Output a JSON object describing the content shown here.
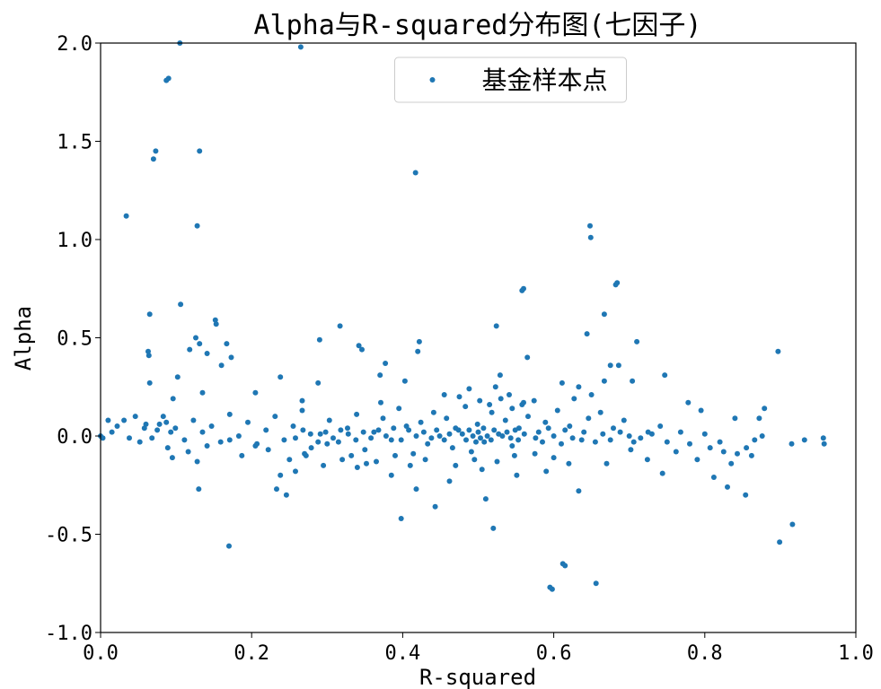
{
  "chart_data": {
    "type": "scatter",
    "title": "Alpha与R-squared分布图(七因子)",
    "xlabel": "R-squared",
    "ylabel": "Alpha",
    "xlim": [
      0.0,
      1.0
    ],
    "ylim": [
      -1.0,
      2.0
    ],
    "xticks": [
      0.0,
      0.2,
      0.4,
      0.6,
      0.8,
      1.0
    ],
    "xtick_labels": [
      "0.0",
      "0.2",
      "0.4",
      "0.6",
      "0.8",
      "1.0"
    ],
    "yticks": [
      -1.0,
      -0.5,
      0.0,
      0.5,
      1.0,
      1.5,
      2.0
    ],
    "ytick_labels": [
      "-1.0",
      "-0.5",
      "0.0",
      "0.5",
      "1.0",
      "1.5",
      "2.0"
    ],
    "grid": false,
    "legend": {
      "position": "top-center"
    },
    "series": [
      {
        "name": "基金样本点",
        "color": "#1f77b4",
        "points": [
          [
            0.105,
            2.0
          ],
          [
            0.265,
            1.98
          ],
          [
            0.09,
            1.82
          ],
          [
            0.087,
            1.81
          ],
          [
            0.073,
            1.45
          ],
          [
            0.131,
            1.45
          ],
          [
            0.07,
            1.41
          ],
          [
            0.417,
            1.34
          ],
          [
            0.034,
            1.12
          ],
          [
            0.128,
            1.07
          ],
          [
            0.648,
            1.07
          ],
          [
            0.649,
            1.01
          ],
          [
            0.684,
            0.78
          ],
          [
            0.682,
            0.77
          ],
          [
            0.56,
            0.75
          ],
          [
            0.558,
            0.74
          ],
          [
            0.106,
            0.67
          ],
          [
            0.065,
            0.62
          ],
          [
            0.667,
            0.62
          ],
          [
            0.152,
            0.59
          ],
          [
            0.153,
            0.57
          ],
          [
            0.317,
            0.56
          ],
          [
            0.524,
            0.56
          ],
          [
            0.644,
            0.52
          ],
          [
            0.126,
            0.5
          ],
          [
            0.29,
            0.49
          ],
          [
            0.422,
            0.48
          ],
          [
            0.71,
            0.48
          ],
          [
            0.167,
            0.47
          ],
          [
            0.131,
            0.47
          ],
          [
            0.342,
            0.46
          ],
          [
            0.346,
            0.44
          ],
          [
            0.063,
            0.43
          ],
          [
            0.064,
            0.41
          ],
          [
            0.118,
            0.44
          ],
          [
            0.141,
            0.42
          ],
          [
            0.173,
            0.4
          ],
          [
            0.42,
            0.43
          ],
          [
            0.565,
            0.4
          ],
          [
            0.897,
            0.43
          ],
          [
            0.377,
            0.37
          ],
          [
            0.675,
            0.36
          ],
          [
            0.686,
            0.36
          ],
          [
            0.16,
            0.36
          ],
          [
            0.102,
            0.3
          ],
          [
            0.238,
            0.3
          ],
          [
            0.37,
            0.31
          ],
          [
            0.529,
            0.31
          ],
          [
            0.747,
            0.31
          ],
          [
            0.065,
            0.27
          ],
          [
            0.288,
            0.27
          ],
          [
            0.403,
            0.28
          ],
          [
            0.611,
            0.27
          ],
          [
            0.633,
            0.25
          ],
          [
            0.667,
            0.28
          ],
          [
            0.704,
            0.28
          ],
          [
            0.096,
            0.19
          ],
          [
            0.135,
            0.22
          ],
          [
            0.205,
            0.22
          ],
          [
            0.267,
            0.18
          ],
          [
            0.371,
            0.17
          ],
          [
            0.523,
            0.25
          ],
          [
            0.541,
            0.21
          ],
          [
            0.558,
            0.16
          ],
          [
            0.574,
            0.18
          ],
          [
            0.627,
            0.19
          ],
          [
            0.65,
            0.21
          ],
          [
            0.778,
            0.17
          ],
          [
            0.795,
            0.13
          ],
          [
            0.84,
            0.09
          ],
          [
            0.879,
            0.14
          ],
          [
            0.872,
            0.09
          ],
          [
            0.01,
            0.08
          ],
          [
            0.022,
            0.05
          ],
          [
            0.031,
            0.08
          ],
          [
            0.046,
            0.1
          ],
          [
            0.058,
            0.04
          ],
          [
            0.078,
            0.06
          ],
          [
            0.083,
            0.1
          ],
          [
            0.093,
            0.02
          ],
          [
            0.0,
            0.0
          ],
          [
            0.003,
            -0.01
          ],
          [
            0.015,
            0.02
          ],
          [
            0.038,
            -0.01
          ],
          [
            0.052,
            -0.03
          ],
          [
            0.089,
            -0.06
          ],
          [
            0.095,
            -0.11
          ],
          [
            0.116,
            -0.08
          ],
          [
            0.128,
            -0.13
          ],
          [
            0.141,
            -0.05
          ],
          [
            0.171,
            -0.02
          ],
          [
            0.187,
            -0.1
          ],
          [
            0.205,
            -0.05
          ],
          [
            0.222,
            -0.07
          ],
          [
            0.238,
            -0.2
          ],
          [
            0.246,
            -0.3
          ],
          [
            0.233,
            -0.27
          ],
          [
            0.258,
            -0.18
          ],
          [
            0.272,
            -0.1
          ],
          [
            0.3,
            -0.04
          ],
          [
            0.332,
            -0.1
          ],
          [
            0.352,
            -0.14
          ],
          [
            0.385,
            -0.2
          ],
          [
            0.398,
            -0.42
          ],
          [
            0.418,
            -0.27
          ],
          [
            0.443,
            -0.36
          ],
          [
            0.462,
            -0.23
          ],
          [
            0.505,
            -0.17
          ],
          [
            0.51,
            -0.32
          ],
          [
            0.52,
            -0.47
          ],
          [
            0.551,
            -0.2
          ],
          [
            0.59,
            -0.18
          ],
          [
            0.598,
            -0.78
          ],
          [
            0.595,
            -0.77
          ],
          [
            0.612,
            -0.65
          ],
          [
            0.615,
            -0.66
          ],
          [
            0.633,
            -0.28
          ],
          [
            0.656,
            -0.75
          ],
          [
            0.17,
            -0.56
          ],
          [
            0.13,
            -0.27
          ],
          [
            0.67,
            -0.14
          ],
          [
            0.702,
            -0.07
          ],
          [
            0.724,
            -0.12
          ],
          [
            0.744,
            -0.19
          ],
          [
            0.762,
            -0.08
          ],
          [
            0.79,
            -0.12
          ],
          [
            0.812,
            -0.21
          ],
          [
            0.83,
            -0.26
          ],
          [
            0.854,
            -0.3
          ],
          [
            0.862,
            -0.1
          ],
          [
            0.899,
            -0.54
          ],
          [
            0.916,
            -0.45
          ],
          [
            0.915,
            -0.04
          ],
          [
            0.932,
            -0.02
          ],
          [
            0.957,
            -0.01
          ],
          [
            0.958,
            -0.04
          ],
          [
            0.843,
            -0.09
          ],
          [
            0.82,
            -0.03
          ],
          [
            0.876,
            0.0
          ],
          [
            0.866,
            -0.02
          ],
          [
            0.855,
            -0.06
          ],
          [
            0.807,
            -0.06
          ],
          [
            0.768,
            0.02
          ],
          [
            0.741,
            0.05
          ],
          [
            0.725,
            0.02
          ],
          [
            0.706,
            -0.03
          ],
          [
            0.693,
            0.08
          ],
          [
            0.679,
            0.04
          ],
          [
            0.662,
            0.12
          ],
          [
            0.646,
            0.09
          ],
          [
            0.637,
            -0.02
          ],
          [
            0.621,
            0.05
          ],
          [
            0.605,
            0.13
          ],
          [
            0.589,
            0.07
          ],
          [
            0.576,
            -0.01
          ],
          [
            0.566,
            0.1
          ],
          [
            0.554,
            0.04
          ],
          [
            0.545,
            -0.05
          ],
          [
            0.536,
            0.08
          ],
          [
            0.527,
            0.01
          ],
          [
            0.518,
            0.12
          ],
          [
            0.508,
            -0.03
          ],
          [
            0.499,
            0.06
          ],
          [
            0.491,
            -0.08
          ],
          [
            0.483,
            0.15
          ],
          [
            0.474,
            0.03
          ],
          [
            0.466,
            -0.06
          ],
          [
            0.458,
            0.09
          ],
          [
            0.449,
            0.0
          ],
          [
            0.441,
            0.12
          ],
          [
            0.433,
            -0.04
          ],
          [
            0.424,
            0.07
          ],
          [
            0.414,
            -0.09
          ],
          [
            0.405,
            0.05
          ],
          [
            0.395,
            0.14
          ],
          [
            0.385,
            -0.02
          ],
          [
            0.374,
            0.09
          ],
          [
            0.362,
            0.02
          ],
          [
            0.35,
            -0.07
          ],
          [
            0.339,
            0.11
          ],
          [
            0.327,
            0.04
          ],
          [
            0.315,
            -0.03
          ],
          [
            0.303,
            0.08
          ],
          [
            0.291,
            0.01
          ],
          [
            0.279,
            -0.06
          ],
          [
            0.267,
            0.13
          ],
          [
            0.255,
            0.05
          ],
          [
            0.243,
            -0.02
          ],
          [
            0.231,
            0.1
          ],
          [
            0.219,
            0.03
          ],
          [
            0.207,
            -0.04
          ],
          [
            0.195,
            0.07
          ],
          [
            0.183,
            0.0
          ],
          [
            0.171,
            0.11
          ],
          [
            0.159,
            -0.03
          ],
          [
            0.147,
            0.05
          ],
          [
            0.135,
            0.02
          ],
          [
            0.123,
            0.08
          ],
          [
            0.111,
            -0.02
          ],
          [
            0.099,
            0.04
          ],
          [
            0.087,
            0.07
          ],
          [
            0.075,
            0.03
          ],
          [
            0.068,
            -0.01
          ],
          [
            0.06,
            0.06
          ],
          [
            0.475,
            0.2
          ],
          [
            0.488,
            0.24
          ],
          [
            0.502,
            0.18
          ],
          [
            0.455,
            0.21
          ],
          [
            0.515,
            0.16
          ],
          [
            0.53,
            0.19
          ],
          [
            0.545,
            0.14
          ],
          [
            0.56,
            0.17
          ],
          [
            0.47,
            -0.15
          ],
          [
            0.495,
            -0.12
          ],
          [
            0.525,
            -0.13
          ],
          [
            0.548,
            -0.1
          ],
          [
            0.575,
            -0.09
          ],
          [
            0.6,
            -0.11
          ],
          [
            0.62,
            -0.14
          ],
          [
            0.43,
            -0.12
          ],
          [
            0.41,
            -0.15
          ],
          [
            0.39,
            -0.1
          ],
          [
            0.365,
            -0.13
          ],
          [
            0.34,
            -0.16
          ],
          [
            0.32,
            -0.12
          ],
          [
            0.295,
            -0.15
          ],
          [
            0.27,
            -0.09
          ],
          [
            0.25,
            -0.12
          ],
          [
            0.5,
            0.02
          ],
          [
            0.503,
            -0.01
          ],
          [
            0.507,
            0.04
          ],
          [
            0.512,
            0.0
          ],
          [
            0.517,
            -0.02
          ],
          [
            0.521,
            0.03
          ],
          [
            0.532,
            0.0
          ],
          [
            0.538,
            0.02
          ],
          [
            0.543,
            -0.01
          ],
          [
            0.549,
            0.03
          ],
          [
            0.553,
            -0.02
          ],
          [
            0.561,
            0.01
          ],
          [
            0.479,
            0.01
          ],
          [
            0.484,
            -0.02
          ],
          [
            0.488,
            0.03
          ],
          [
            0.493,
            0.0
          ],
          [
            0.497,
            -0.03
          ],
          [
            0.47,
            0.04
          ],
          [
            0.462,
            0.01
          ],
          [
            0.455,
            -0.02
          ],
          [
            0.58,
            0.02
          ],
          [
            0.585,
            -0.03
          ],
          [
            0.593,
            0.04
          ],
          [
            0.6,
            0.0
          ],
          [
            0.61,
            -0.04
          ],
          [
            0.615,
            0.03
          ],
          [
            0.625,
            -0.01
          ],
          [
            0.64,
            0.02
          ],
          [
            0.655,
            -0.03
          ],
          [
            0.665,
            0.01
          ],
          [
            0.675,
            -0.02
          ],
          [
            0.688,
            0.02
          ],
          [
            0.7,
            0.0
          ],
          [
            0.715,
            -0.01
          ],
          [
            0.73,
            0.01
          ],
          [
            0.75,
            -0.03
          ],
          [
            0.78,
            -0.04
          ],
          [
            0.8,
            0.01
          ],
          [
            0.825,
            -0.08
          ],
          [
            0.835,
            -0.14
          ],
          [
            0.445,
            0.03
          ],
          [
            0.438,
            -0.01
          ],
          [
            0.428,
            0.02
          ],
          [
            0.418,
            0.0
          ],
          [
            0.408,
            0.03
          ],
          [
            0.398,
            -0.02
          ],
          [
            0.388,
            0.04
          ],
          [
            0.378,
            0.0
          ],
          [
            0.368,
            0.03
          ],
          [
            0.358,
            -0.01
          ],
          [
            0.348,
            0.02
          ],
          [
            0.338,
            -0.02
          ],
          [
            0.328,
            0.01
          ],
          [
            0.318,
            0.03
          ],
          [
            0.308,
            -0.01
          ],
          [
            0.298,
            0.02
          ],
          [
            0.288,
            -0.03
          ],
          [
            0.278,
            0.01
          ],
          [
            0.268,
            0.03
          ],
          [
            0.258,
            -0.01
          ]
        ]
      }
    ]
  }
}
